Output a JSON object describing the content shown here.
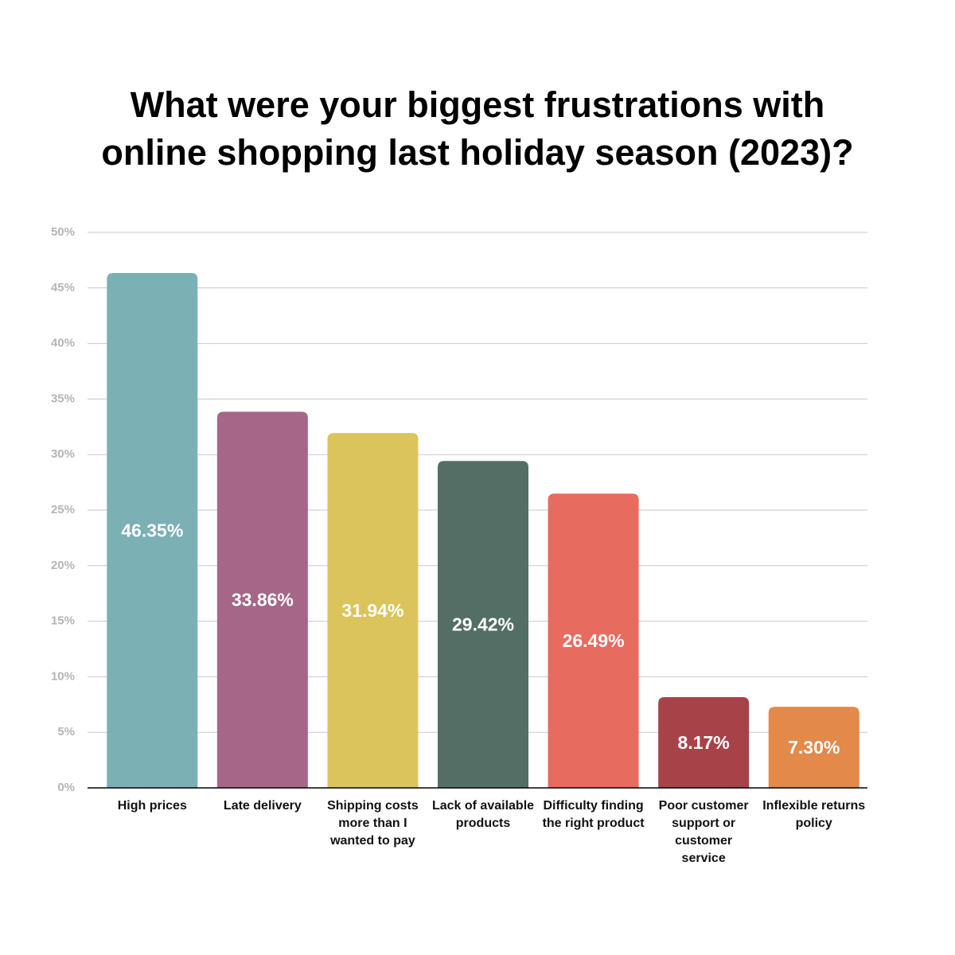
{
  "chart_data": {
    "type": "bar",
    "title": [
      "What were your biggest frustrations with",
      "online shopping last holiday season (2023)?"
    ],
    "categories": [
      "High prices",
      "Late delivery",
      "Shipping costs more than I wanted to pay",
      "Lack of available products",
      "Difficulty finding the right product",
      "Poor customer support or customer service",
      "Inflexible returns policy"
    ],
    "values": [
      46.35,
      33.86,
      31.94,
      29.42,
      26.49,
      8.17,
      7.3
    ],
    "value_labels": [
      "46.35%",
      "33.86%",
      "31.94%",
      "29.42%",
      "26.49%",
      "8.17%",
      "7.30%"
    ],
    "colors": [
      "#7bb0b5",
      "#a66688",
      "#dbc45c",
      "#546e66",
      "#e86b5f",
      "#a84249",
      "#e3894a"
    ],
    "ylim": [
      0,
      50
    ],
    "yticks": [
      {
        "value": 0,
        "label": "0%"
      },
      {
        "value": 5,
        "label": "5%"
      },
      {
        "value": 10,
        "label": "10%"
      },
      {
        "value": 15,
        "label": "15%"
      },
      {
        "value": 20,
        "label": "20%"
      },
      {
        "value": 25,
        "label": "25%"
      },
      {
        "value": 30,
        "label": "30%"
      },
      {
        "value": 35,
        "label": "35%"
      },
      {
        "value": 40,
        "label": "40%"
      },
      {
        "value": 45,
        "label": "45%"
      },
      {
        "value": 50,
        "label": "50%"
      }
    ],
    "grid": true
  }
}
